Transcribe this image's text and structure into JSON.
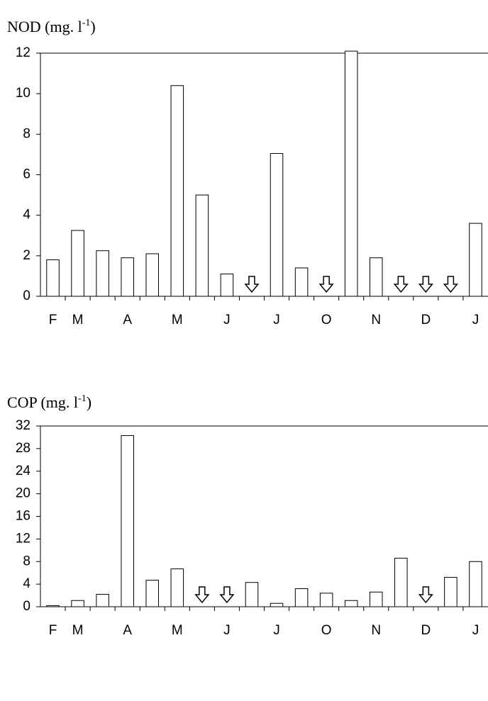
{
  "chart_data": [
    {
      "type": "bar",
      "title_main": "NOD (mg. l",
      "title_sup": "-1",
      "title_end": ")",
      "categories": [
        "F",
        "M",
        null,
        "A",
        null,
        "M",
        null,
        "J",
        null,
        "J",
        null,
        "O",
        null,
        "N",
        null,
        "D",
        null,
        "J"
      ],
      "values": [
        1.8,
        3.25,
        2.25,
        1.9,
        2.1,
        10.4,
        5.0,
        1.1,
        null,
        7.05,
        1.4,
        null,
        12.1,
        1.9,
        null,
        null,
        null,
        3.6
      ],
      "color": "#ffffff",
      "ylim": [
        0,
        12
      ],
      "yticks": [
        0,
        2,
        4,
        6,
        8,
        10,
        12
      ]
    },
    {
      "type": "bar",
      "title_main": "COP (mg. l",
      "title_sup": "-1",
      "title_end": ")",
      "categories": [
        "F",
        "M",
        null,
        "A",
        null,
        "M",
        null,
        "J",
        null,
        "J",
        null,
        "O",
        null,
        "N",
        null,
        "D",
        null,
        "J"
      ],
      "values": [
        0.2,
        1.1,
        2.2,
        30.3,
        4.7,
        6.7,
        null,
        null,
        4.3,
        0.6,
        3.2,
        2.4,
        1.1,
        2.6,
        8.6,
        null,
        5.2,
        8.0
      ],
      "color": "#ffffff",
      "ylim": [
        0,
        32
      ],
      "yticks": [
        0,
        4,
        8,
        12,
        16,
        20,
        24,
        28,
        32
      ]
    }
  ]
}
